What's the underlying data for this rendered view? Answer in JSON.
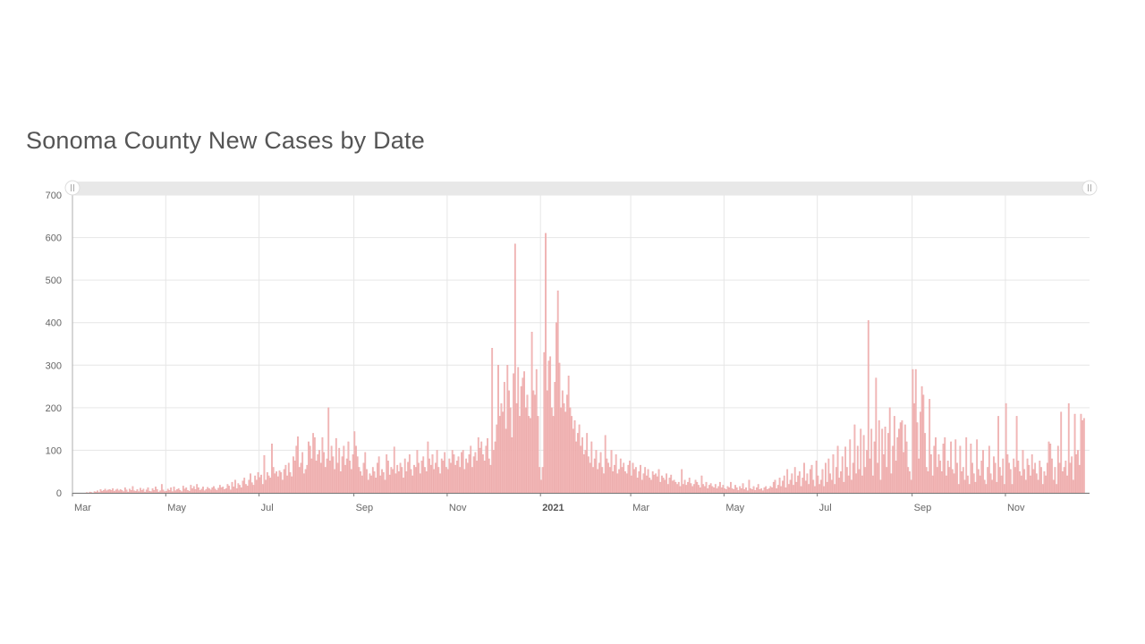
{
  "chart_data": {
    "type": "bar",
    "title": "Sonoma County New Cases by Date",
    "xlabel": "",
    "ylabel": "",
    "ylim": [
      0,
      700
    ],
    "y_ticks": [
      "0",
      "100",
      "200",
      "300",
      "400",
      "500",
      "600",
      "700"
    ],
    "x_range": [
      "2020-03-01",
      "2021-12-26"
    ],
    "x_ticks": [
      {
        "label": "Mar",
        "date": "2020-03-01",
        "bold": false
      },
      {
        "label": "May",
        "date": "2020-05-01",
        "bold": false
      },
      {
        "label": "Jul",
        "date": "2020-07-01",
        "bold": false
      },
      {
        "label": "Sep",
        "date": "2020-09-01",
        "bold": false
      },
      {
        "label": "Nov",
        "date": "2020-11-01",
        "bold": false
      },
      {
        "label": "2021",
        "date": "2021-01-01",
        "bold": true
      },
      {
        "label": "Mar",
        "date": "2021-03-01",
        "bold": false
      },
      {
        "label": "May",
        "date": "2021-05-01",
        "bold": false
      },
      {
        "label": "Jul",
        "date": "2021-07-01",
        "bold": false
      },
      {
        "label": "Sep",
        "date": "2021-09-01",
        "bold": false
      },
      {
        "label": "Nov",
        "date": "2021-11-01",
        "bold": false
      }
    ],
    "grid": true,
    "series_color": "#f3b9b9",
    "start_date": "2020-03-01",
    "interval": "day",
    "values": [
      0,
      0,
      0,
      0,
      0,
      0,
      0,
      0,
      0,
      1,
      0,
      2,
      1,
      0,
      3,
      2,
      5,
      1,
      8,
      4,
      6,
      9,
      5,
      7,
      8,
      6,
      10,
      4,
      7,
      9,
      5,
      8,
      6,
      3,
      12,
      7,
      2,
      9,
      6,
      15,
      5,
      4,
      8,
      3,
      11,
      6,
      9,
      2,
      7,
      12,
      4,
      3,
      10,
      6,
      14,
      8,
      2,
      5,
      20,
      7,
      3,
      4,
      9,
      6,
      12,
      3,
      14,
      5,
      8,
      10,
      6,
      3,
      16,
      9,
      12,
      6,
      4,
      18,
      10,
      15,
      8,
      20,
      12,
      6,
      9,
      14,
      5,
      8,
      13,
      10,
      7,
      12,
      15,
      9,
      6,
      11,
      18,
      12,
      14,
      8,
      10,
      20,
      16,
      7,
      25,
      14,
      30,
      10,
      22,
      18,
      12,
      28,
      35,
      20,
      16,
      30,
      45,
      24,
      18,
      40,
      30,
      48,
      36,
      42,
      20,
      88,
      30,
      48,
      40,
      35,
      115,
      60,
      45,
      50,
      38,
      52,
      48,
      30,
      55,
      65,
      40,
      70,
      48,
      38,
      85,
      75,
      110,
      132,
      60,
      70,
      95,
      45,
      55,
      65,
      120,
      110,
      80,
      140,
      130,
      75,
      90,
      100,
      70,
      130,
      95,
      60,
      80,
      200,
      75,
      110,
      85,
      55,
      128,
      70,
      105,
      50,
      85,
      110,
      65,
      80,
      120,
      75,
      55,
      90,
      144,
      110,
      85,
      60,
      50,
      40,
      70,
      95,
      55,
      30,
      45,
      40,
      60,
      50,
      35,
      70,
      85,
      40,
      55,
      48,
      30,
      90,
      75,
      42,
      60,
      55,
      108,
      45,
      65,
      50,
      70,
      60,
      35,
      80,
      50,
      72,
      90,
      55,
      40,
      65,
      60,
      100,
      70,
      45,
      75,
      85,
      60,
      50,
      120,
      80,
      65,
      90,
      55,
      70,
      100,
      60,
      45,
      80,
      75,
      95,
      60,
      55,
      80,
      70,
      100,
      90,
      65,
      75,
      85,
      60,
      95,
      100,
      55,
      80,
      70,
      90,
      110,
      60,
      85,
      95,
      75,
      130,
      105,
      120,
      90,
      75,
      110,
      128,
      80,
      65,
      340,
      100,
      120,
      160,
      300,
      180,
      210,
      190,
      260,
      150,
      300,
      240,
      200,
      130,
      280,
      585,
      210,
      295,
      180,
      250,
      270,
      285,
      200,
      230,
      180,
      175,
      378,
      240,
      230,
      290,
      180,
      60,
      30,
      60,
      330,
      610,
      240,
      310,
      320,
      200,
      180,
      260,
      400,
      475,
      305,
      200,
      240,
      210,
      190,
      230,
      275,
      200,
      180,
      150,
      170,
      120,
      140,
      160,
      110,
      130,
      90,
      100,
      140,
      85,
      70,
      120,
      60,
      80,
      100,
      55,
      70,
      95,
      60,
      45,
      135,
      80,
      70,
      60,
      100,
      50,
      65,
      90,
      45,
      55,
      80,
      60,
      70,
      50,
      45,
      65,
      75,
      40,
      70,
      55,
      60,
      35,
      50,
      65,
      30,
      45,
      60,
      40,
      55,
      35,
      30,
      50,
      42,
      45,
      38,
      55,
      25,
      40,
      35,
      30,
      45,
      20,
      35,
      42,
      28,
      30,
      25,
      20,
      25,
      15,
      55,
      20,
      30,
      18,
      25,
      35,
      22,
      15,
      20,
      30,
      25,
      18,
      12,
      40,
      20,
      15,
      25,
      10,
      18,
      22,
      15,
      12,
      20,
      10,
      15,
      25,
      12,
      18,
      10,
      8,
      15,
      12,
      25,
      10,
      8,
      18,
      12,
      6,
      15,
      10,
      22,
      8,
      12,
      5,
      30,
      10,
      8,
      15,
      6,
      12,
      20,
      8,
      10,
      5,
      12,
      15,
      8,
      10,
      15,
      12,
      25,
      30,
      10,
      18,
      35,
      15,
      28,
      40,
      12,
      55,
      20,
      30,
      45,
      18,
      60,
      25,
      40,
      50,
      15,
      35,
      70,
      28,
      45,
      20,
      55,
      65,
      30,
      15,
      75,
      40,
      20,
      30,
      55,
      15,
      70,
      25,
      80,
      45,
      30,
      90,
      20,
      60,
      110,
      35,
      50,
      85,
      25,
      108,
      60,
      40,
      125,
      30,
      70,
      160,
      45,
      110,
      55,
      150,
      40,
      135,
      60,
      100,
      405,
      80,
      150,
      40,
      120,
      270,
      70,
      170,
      30,
      150,
      90,
      155,
      60,
      140,
      200,
      45,
      110,
      180,
      75,
      130,
      150,
      165,
      170,
      95,
      160,
      120,
      60,
      50,
      30,
      290,
      210,
      290,
      165,
      80,
      190,
      250,
      230,
      140,
      60,
      50,
      220,
      90,
      40,
      110,
      130,
      60,
      90,
      75,
      50,
      115,
      130,
      40,
      75,
      60,
      120,
      55,
      45,
      125,
      70,
      20,
      110,
      50,
      60,
      30,
      130,
      40,
      20,
      115,
      70,
      45,
      25,
      125,
      55,
      40,
      75,
      100,
      30,
      20,
      60,
      110,
      45,
      30,
      85,
      70,
      25,
      180,
      60,
      40,
      80,
      20,
      210,
      90,
      70,
      55,
      20,
      80,
      60,
      180,
      75,
      50,
      40,
      100,
      55,
      30,
      80,
      65,
      40,
      90,
      55,
      70,
      45,
      30,
      75,
      60,
      20,
      50,
      40,
      70,
      120,
      115,
      80,
      30,
      60,
      20,
      110,
      70,
      190,
      50,
      60,
      75,
      40,
      210,
      70,
      85,
      30,
      185,
      90,
      100,
      65,
      185,
      170,
      175
    ]
  },
  "range_slider": {
    "left_handle_icon": "grip-lines-icon",
    "right_handle_icon": "grip-lines-icon"
  }
}
